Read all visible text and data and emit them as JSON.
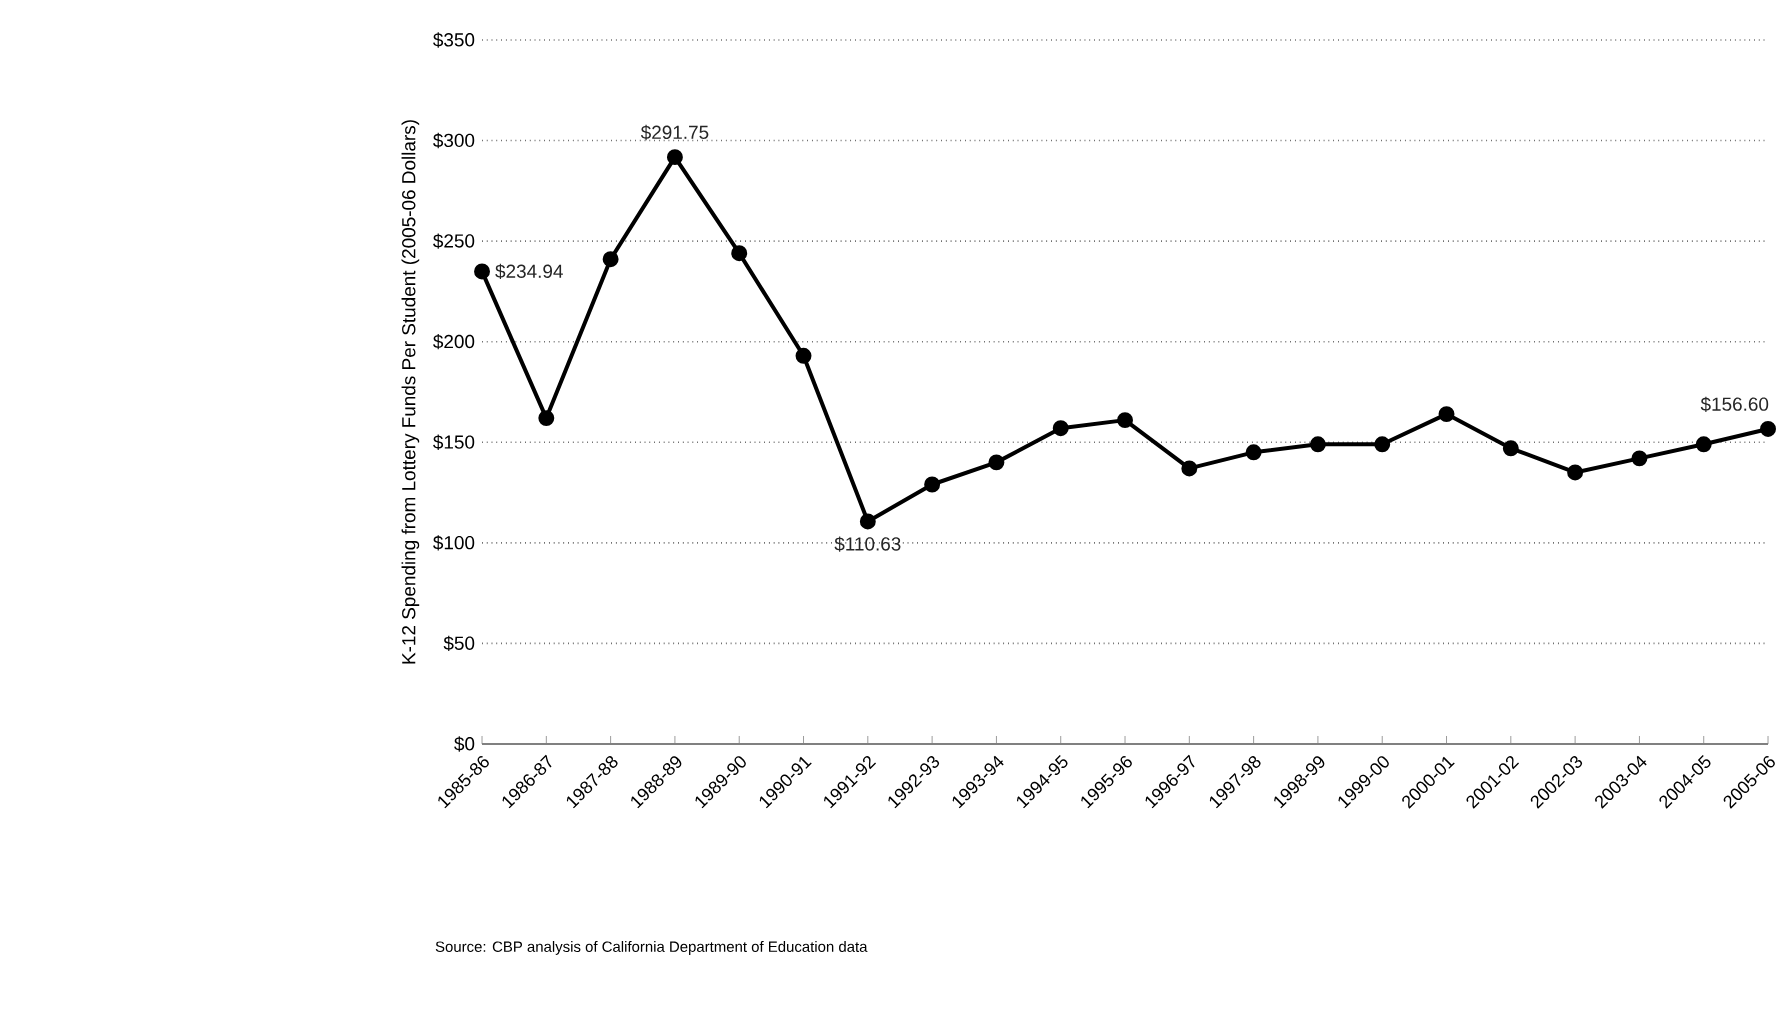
{
  "chart_data": {
    "type": "line",
    "ylabel": "K-12 Spending from Lottery Funds Per Student (2005-06 Dollars)",
    "categories": [
      "1985-86",
      "1986-87",
      "1987-88",
      "1988-89",
      "1989-90",
      "1990-91",
      "1991-92",
      "1992-93",
      "1993-94",
      "1994-95",
      "1995-96",
      "1996-97",
      "1997-98",
      "1998-99",
      "1999-00",
      "2000-01",
      "2001-02",
      "2002-03",
      "2003-04",
      "2004-05",
      "2005-06"
    ],
    "series": [
      {
        "color": "#000000",
        "values": [
          234.94,
          162,
          241,
          291.75,
          244,
          193,
          110.63,
          129,
          140,
          157,
          161,
          137,
          145,
          149,
          149,
          164,
          147,
          135,
          142,
          149,
          156.6
        ],
        "value_labels": [
          "$234.94",
          null,
          null,
          "$291.75",
          null,
          null,
          "$110.63",
          null,
          null,
          null,
          null,
          null,
          null,
          null,
          null,
          null,
          null,
          null,
          null,
          null,
          "$156.60"
        ]
      }
    ],
    "ylim": [
      0,
      350
    ],
    "yticks": [
      {
        "value": 0,
        "label": "$0"
      },
      {
        "value": 50,
        "label": "$50"
      },
      {
        "value": 100,
        "label": "$100"
      },
      {
        "value": 150,
        "label": "$150"
      },
      {
        "value": 200,
        "label": "$200"
      },
      {
        "value": 250,
        "label": "$250"
      },
      {
        "value": 300,
        "label": "$300"
      },
      {
        "value": 350,
        "label": "$350"
      }
    ],
    "grid": "y",
    "marker": "circle",
    "line_style": "solid",
    "annotations": [
      "Source: CBP analysis of California Department of Education data"
    ]
  }
}
